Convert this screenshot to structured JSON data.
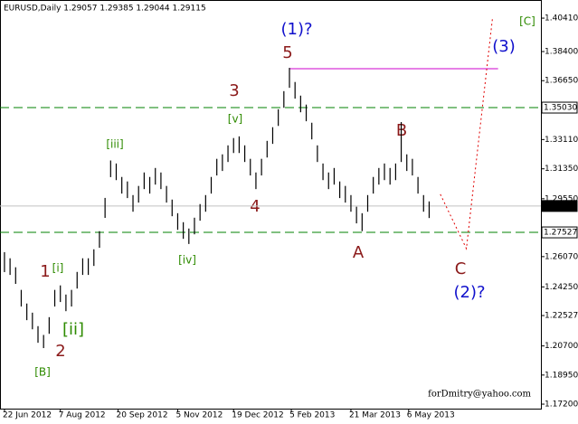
{
  "chart_data": {
    "type": "range_bar",
    "title": "EURUSD,Daily  1.29057 1.29385 1.29044 1.29115",
    "watermark": "forDmitry@yahoo.com",
    "color": "#000000",
    "x": [
      0,
      3,
      6,
      9,
      12,
      15,
      18,
      21,
      24,
      27,
      30,
      33,
      36,
      39,
      42,
      45,
      48,
      51,
      54,
      57,
      60,
      63,
      66,
      69,
      72,
      75,
      78,
      81,
      84,
      87,
      90,
      93,
      96,
      99,
      102,
      105,
      108,
      111,
      114,
      117,
      120,
      123,
      126,
      129,
      132,
      135,
      138,
      141,
      144,
      147,
      150,
      153,
      156,
      159,
      162,
      165,
      168,
      171,
      174,
      177,
      180,
      183,
      186,
      189,
      192,
      195,
      198,
      201,
      204,
      207,
      210,
      213,
      216,
      219,
      222,
      225,
      228
    ],
    "high": [
      1.2634,
      1.2597,
      1.2543,
      1.2407,
      1.2325,
      1.227,
      1.2189,
      1.2136,
      1.2243,
      1.2407,
      1.2434,
      1.2379,
      1.2407,
      1.2515,
      1.2597,
      1.2597,
      1.2651,
      1.276,
      1.296,
      1.3185,
      1.3167,
      1.3086,
      1.3059,
      1.2977,
      1.3032,
      1.3113,
      1.3086,
      1.314,
      1.3113,
      1.3032,
      1.295,
      1.2868,
      1.2814,
      1.2776,
      1.2841,
      1.2923,
      1.2977,
      1.3086,
      1.3195,
      1.3222,
      1.3276,
      1.332,
      1.333,
      1.3276,
      1.3195,
      1.3113,
      1.3195,
      1.3303,
      1.3385,
      1.3493,
      1.3602,
      1.3742,
      1.3657,
      1.3575,
      1.3521,
      1.3412,
      1.3276,
      1.3167,
      1.3113,
      1.314,
      1.3059,
      1.3032,
      1.2977,
      1.2907,
      1.2868,
      1.2977,
      1.3086,
      1.314,
      1.3167,
      1.314,
      1.3167,
      1.3416,
      1.3222,
      1.3195,
      1.3086,
      1.2977,
      1.2939
    ],
    "low": [
      1.2514,
      1.2497,
      1.2443,
      1.2307,
      1.2225,
      1.217,
      1.2089,
      1.2057,
      1.2143,
      1.2307,
      1.2334,
      1.2279,
      1.2307,
      1.2415,
      1.2497,
      1.2497,
      1.2551,
      1.266,
      1.284,
      1.3085,
      1.3067,
      1.2986,
      1.2959,
      1.2877,
      1.2932,
      1.3013,
      1.2986,
      1.304,
      1.3013,
      1.2932,
      1.285,
      1.2768,
      1.2714,
      1.2683,
      1.2741,
      1.2823,
      1.2877,
      1.2986,
      1.3095,
      1.3122,
      1.3176,
      1.323,
      1.323,
      1.3176,
      1.3095,
      1.3013,
      1.3095,
      1.3203,
      1.3285,
      1.3393,
      1.3502,
      1.3622,
      1.3557,
      1.3475,
      1.3421,
      1.3312,
      1.3176,
      1.3067,
      1.3013,
      1.304,
      1.2959,
      1.2932,
      1.2877,
      1.2807,
      1.276,
      1.2877,
      1.2986,
      1.304,
      1.3067,
      1.304,
      1.3067,
      1.3176,
      1.3122,
      1.3095,
      1.2986,
      1.2877,
      1.2839
    ],
    "xlim": [
      -2.4,
      288
    ],
    "ylim": [
      1.1693,
      1.415
    ],
    "xticks": [
      {
        "value": 0,
        "label": "22 Jun 2012"
      },
      {
        "value": 30,
        "label": "7 Aug 2012"
      },
      {
        "value": 61,
        "label": "20 Sep 2012"
      },
      {
        "value": 93,
        "label": "5 Nov 2012"
      },
      {
        "value": 123,
        "label": "19 Dec 2012"
      },
      {
        "value": 154,
        "label": "5 Feb 2013"
      },
      {
        "value": 186,
        "label": "21 Mar 2013"
      },
      {
        "value": 217,
        "label": "6 May 2013"
      }
    ],
    "yticks": [
      {
        "value": 1.4041,
        "label": "1.40410"
      },
      {
        "value": 1.384,
        "label": "1.38400"
      },
      {
        "value": 1.3665,
        "label": "1.36650"
      },
      {
        "value": 1.3311,
        "label": "1.33110"
      },
      {
        "value": 1.3135,
        "label": "1.31350"
      },
      {
        "value": 1.2955,
        "label": "1.29550"
      },
      {
        "value": 1.2607,
        "label": "1.26070"
      },
      {
        "value": 1.2425,
        "label": "1.24250"
      },
      {
        "value": 1.22527,
        "label": "1.22527"
      },
      {
        "value": 1.207,
        "label": "1.20700"
      },
      {
        "value": 1.1895,
        "label": "1.18950"
      },
      {
        "value": 1.172,
        "label": "1.17200"
      }
    ],
    "levels": [
      {
        "value": 1.3503,
        "label": "1.35030",
        "color": "#008000",
        "dashed": true
      },
      {
        "value": 1.27527,
        "label": "1.27527",
        "color": "#008000",
        "dashed": true
      },
      {
        "value": 1.29115,
        "label": "1.29115",
        "color": "#c0c0c0",
        "dashed": false
      }
    ],
    "lines": [
      {
        "color": "#cc00cc",
        "dashed": false,
        "x": [
          153,
          265
        ],
        "y": [
          1.3737,
          1.3737
        ]
      },
      {
        "color": "#e00000",
        "dashed": true,
        "x": [
          234,
          248,
          262
        ],
        "y": [
          1.2982,
          1.2655,
          1.4041
        ]
      }
    ],
    "annotations": [
      {
        "text": "1",
        "color": "#8b1a1a"
      },
      {
        "text": "2",
        "color": "#8b1a1a"
      },
      {
        "text": "3",
        "color": "#8b1a1a"
      },
      {
        "text": "4",
        "color": "#8b1a1a"
      },
      {
        "text": "5",
        "color": "#8b1a1a"
      },
      {
        "text": "A",
        "color": "#8b1a1a"
      },
      {
        "text": "B",
        "color": "#8b1a1a"
      },
      {
        "text": "C",
        "color": "#8b1a1a"
      },
      {
        "text": "[i]",
        "color": "#2e8b00"
      },
      {
        "text": "[ii]",
        "color": "#2e8b00"
      },
      {
        "text": "[iii]",
        "color": "#2e8b00"
      },
      {
        "text": "[iv]",
        "color": "#2e8b00"
      },
      {
        "text": "[v]",
        "color": "#2e8b00"
      },
      {
        "text": "[B]",
        "color": "#2e8b00"
      },
      {
        "text": "[C]",
        "color": "#2e8b00"
      },
      {
        "text": "(1)?",
        "color": "#1010cc"
      },
      {
        "text": "(2)?",
        "color": "#1010cc"
      },
      {
        "text": "(3)",
        "color": "#1010cc"
      }
    ]
  }
}
